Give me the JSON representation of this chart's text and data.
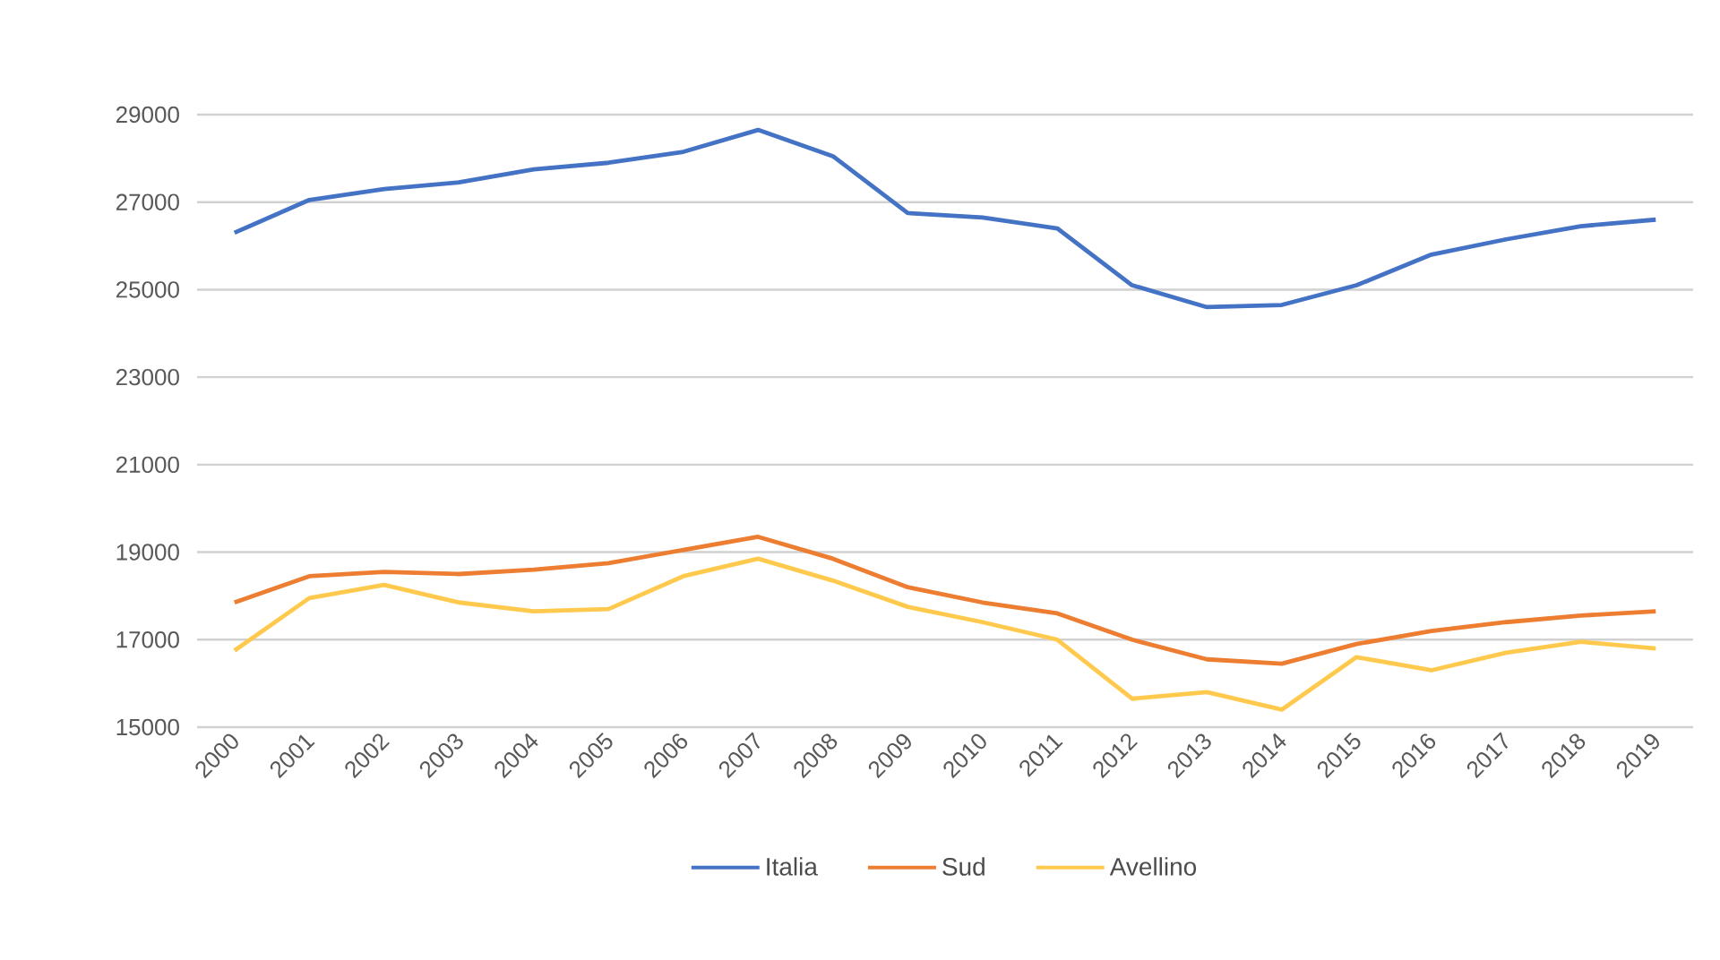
{
  "chart_data": {
    "type": "line",
    "categories": [
      "2000",
      "2001",
      "2002",
      "2003",
      "2004",
      "2005",
      "2006",
      "2007",
      "2008",
      "2009",
      "2010",
      "2011",
      "2012",
      "2013",
      "2014",
      "2015",
      "2016",
      "2017",
      "2018",
      "2019"
    ],
    "series": [
      {
        "name": "Italia",
        "color": "#4472c4",
        "values": [
          26300,
          27050,
          27300,
          27450,
          27750,
          27900,
          28150,
          28650,
          28050,
          26750,
          26650,
          26400,
          25100,
          24600,
          24650,
          25100,
          25800,
          26150,
          26450,
          26600
        ]
      },
      {
        "name": "Sud",
        "color": "#ed7d31",
        "values": [
          17850,
          18450,
          18550,
          18500,
          18600,
          18750,
          19050,
          19350,
          18850,
          18200,
          17850,
          17600,
          17000,
          16550,
          16450,
          16900,
          17200,
          17400,
          17550,
          17650
        ]
      },
      {
        "name": "Avellino",
        "color": "#ffc94d",
        "values": [
          16750,
          17950,
          18250,
          17850,
          17650,
          17700,
          18450,
          18850,
          18350,
          17750,
          17400,
          17000,
          15650,
          15800,
          15400,
          16600,
          16300,
          16700,
          16950,
          16800
        ]
      }
    ],
    "ylim": [
      15000,
      29000
    ],
    "yticks": [
      15000,
      17000,
      19000,
      21000,
      23000,
      25000,
      27000,
      29000
    ],
    "grid": "y",
    "legend": "bottom",
    "marker": "none",
    "line_style": "solid"
  }
}
